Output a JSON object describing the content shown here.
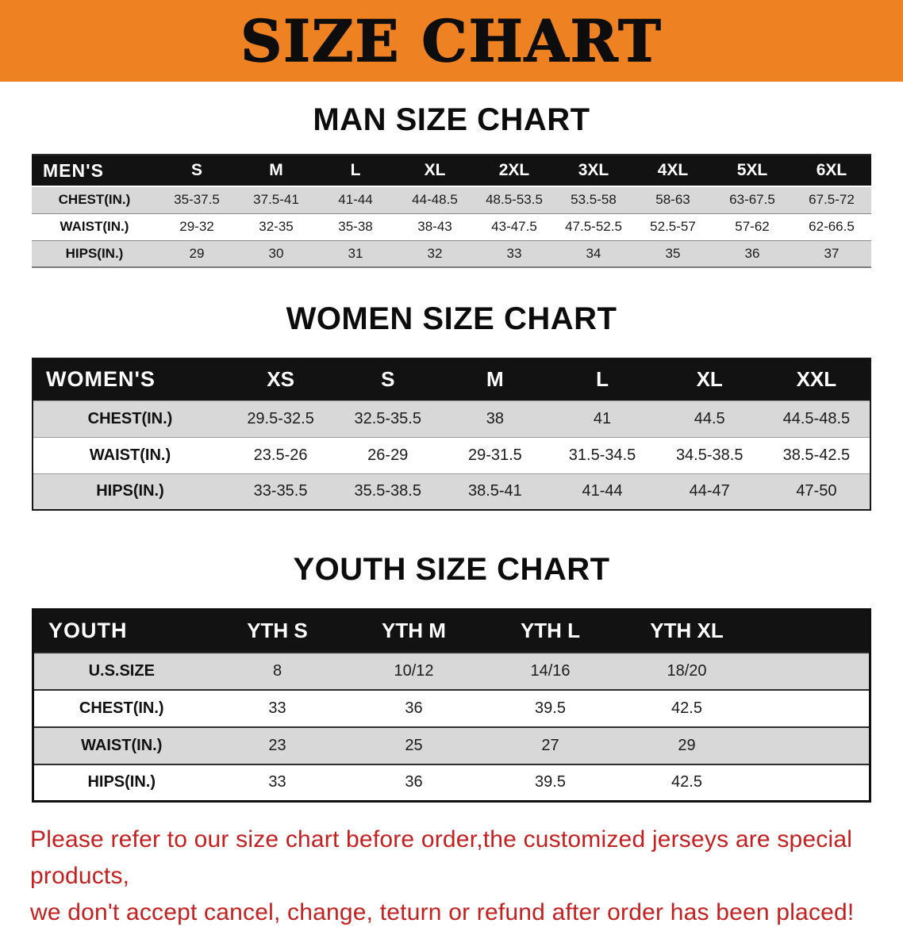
{
  "banner": {
    "title": "SIZE CHART"
  },
  "colors": {
    "banner_bg": "#ee8122",
    "table_header_bg": "#121212",
    "row_shade": "#d8d8d8",
    "footer_text": "#c5201f"
  },
  "sections": {
    "men": {
      "heading": "MAN SIZE CHART",
      "header_label": "MEN'S",
      "columns": [
        "S",
        "M",
        "L",
        "XL",
        "2XL",
        "3XL",
        "4XL",
        "5XL",
        "6XL"
      ],
      "rows": [
        {
          "label": "CHEST(IN.)",
          "values": [
            "35-37.5",
            "37.5-41",
            "41-44",
            "44-48.5",
            "48.5-53.5",
            "53.5-58",
            "58-63",
            "63-67.5",
            "67.5-72"
          ]
        },
        {
          "label": "WAIST(IN.)",
          "values": [
            "29-32",
            "32-35",
            "35-38",
            "38-43",
            "43-47.5",
            "47.5-52.5",
            "52.5-57",
            "57-62",
            "62-66.5"
          ]
        },
        {
          "label": "HIPS(IN.)",
          "values": [
            "29",
            "30",
            "31",
            "32",
            "33",
            "34",
            "35",
            "36",
            "37"
          ]
        }
      ]
    },
    "women": {
      "heading": "WOMEN SIZE CHART",
      "header_label": "WOMEN'S",
      "columns": [
        "XS",
        "S",
        "M",
        "L",
        "XL",
        "XXL"
      ],
      "rows": [
        {
          "label": "CHEST(IN.)",
          "values": [
            "29.5-32.5",
            "32.5-35.5",
            "38",
            "41",
            "44.5",
            "44.5-48.5"
          ]
        },
        {
          "label": "WAIST(IN.)",
          "values": [
            "23.5-26",
            "26-29",
            "29-31.5",
            "31.5-34.5",
            "34.5-38.5",
            "38.5-42.5"
          ]
        },
        {
          "label": "HIPS(IN.)",
          "values": [
            "33-35.5",
            "35.5-38.5",
            "38.5-41",
            "41-44",
            "44-47",
            "47-50"
          ]
        }
      ]
    },
    "youth": {
      "heading": "YOUTH SIZE CHART",
      "header_label": "YOUTH",
      "columns": [
        "YTH S",
        "YTH M",
        "YTH L",
        "YTH XL"
      ],
      "rows": [
        {
          "label": "U.S.SIZE",
          "values": [
            "8",
            "10/12",
            "14/16",
            "18/20"
          ]
        },
        {
          "label": "CHEST(IN.)",
          "values": [
            "33",
            "36",
            "39.5",
            "42.5"
          ]
        },
        {
          "label": "WAIST(IN.)",
          "values": [
            "23",
            "25",
            "27",
            "29"
          ]
        },
        {
          "label": "HIPS(IN.)",
          "values": [
            "33",
            "36",
            "39.5",
            "42.5"
          ]
        }
      ]
    }
  },
  "footer": {
    "line1": "Please refer to our size chart before order,the customized jerseys are special products,",
    "line2": "we don't accept cancel, change, teturn or refund after order has been placed!"
  }
}
